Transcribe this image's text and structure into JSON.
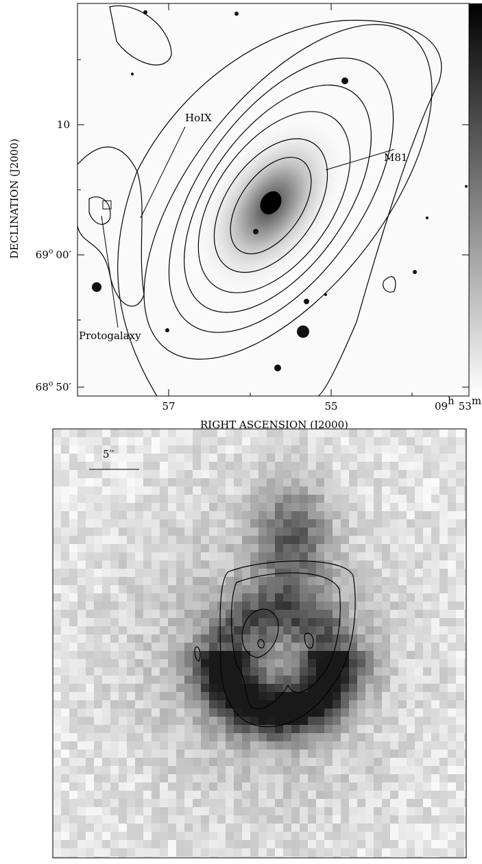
{
  "top_panel": {
    "y_axis_title": "DECLINATION (J2000)",
    "x_axis_title": "RIGHT ASCENSION (J2000)",
    "yticks": [
      {
        "deg": "10"
      },
      {
        "deg": "69",
        "mark": "o",
        "min": "00′"
      },
      {
        "deg": "68",
        "mark": "o",
        "min": "50′"
      }
    ],
    "xticks": [
      {
        "h": "57"
      },
      {
        "h": "55"
      },
      {
        "h": "09",
        "hmark": "h",
        "m": "53",
        "mmark": "m"
      }
    ],
    "labels": {
      "holix": "HoIX",
      "m81": "M81",
      "protogalaxy": "Protogalaxy"
    }
  },
  "bottom_panel": {
    "scale_label": "5′′"
  }
}
